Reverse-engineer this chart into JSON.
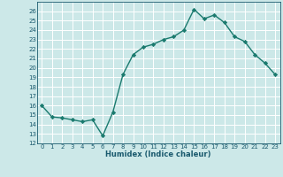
{
  "x": [
    0,
    1,
    2,
    3,
    4,
    5,
    6,
    7,
    8,
    9,
    10,
    11,
    12,
    13,
    14,
    15,
    16,
    17,
    18,
    19,
    20,
    21,
    22,
    23
  ],
  "y": [
    16.0,
    14.8,
    14.7,
    14.5,
    14.3,
    14.5,
    12.8,
    15.3,
    19.3,
    21.4,
    22.2,
    22.5,
    23.0,
    23.3,
    24.0,
    26.2,
    25.2,
    25.6,
    24.8,
    23.3,
    22.8,
    21.4,
    20.5,
    19.3
  ],
  "xlabel": "Humidex (Indice chaleur)",
  "ylim": [
    12,
    27
  ],
  "xlim": [
    -0.5,
    23.5
  ],
  "yticks": [
    12,
    13,
    14,
    15,
    16,
    17,
    18,
    19,
    20,
    21,
    22,
    23,
    24,
    25,
    26
  ],
  "xticks": [
    0,
    1,
    2,
    3,
    4,
    5,
    6,
    7,
    8,
    9,
    10,
    11,
    12,
    13,
    14,
    15,
    16,
    17,
    18,
    19,
    20,
    21,
    22,
    23
  ],
  "line_color": "#1a7a6e",
  "marker": "D",
  "marker_size": 2.2,
  "bg_color": "#cce8e8",
  "grid_color": "#ffffff",
  "label_color": "#1a5a6e",
  "tick_color": "#1a5a6e",
  "tick_fontsize": 5.0,
  "xlabel_fontsize": 6.0
}
